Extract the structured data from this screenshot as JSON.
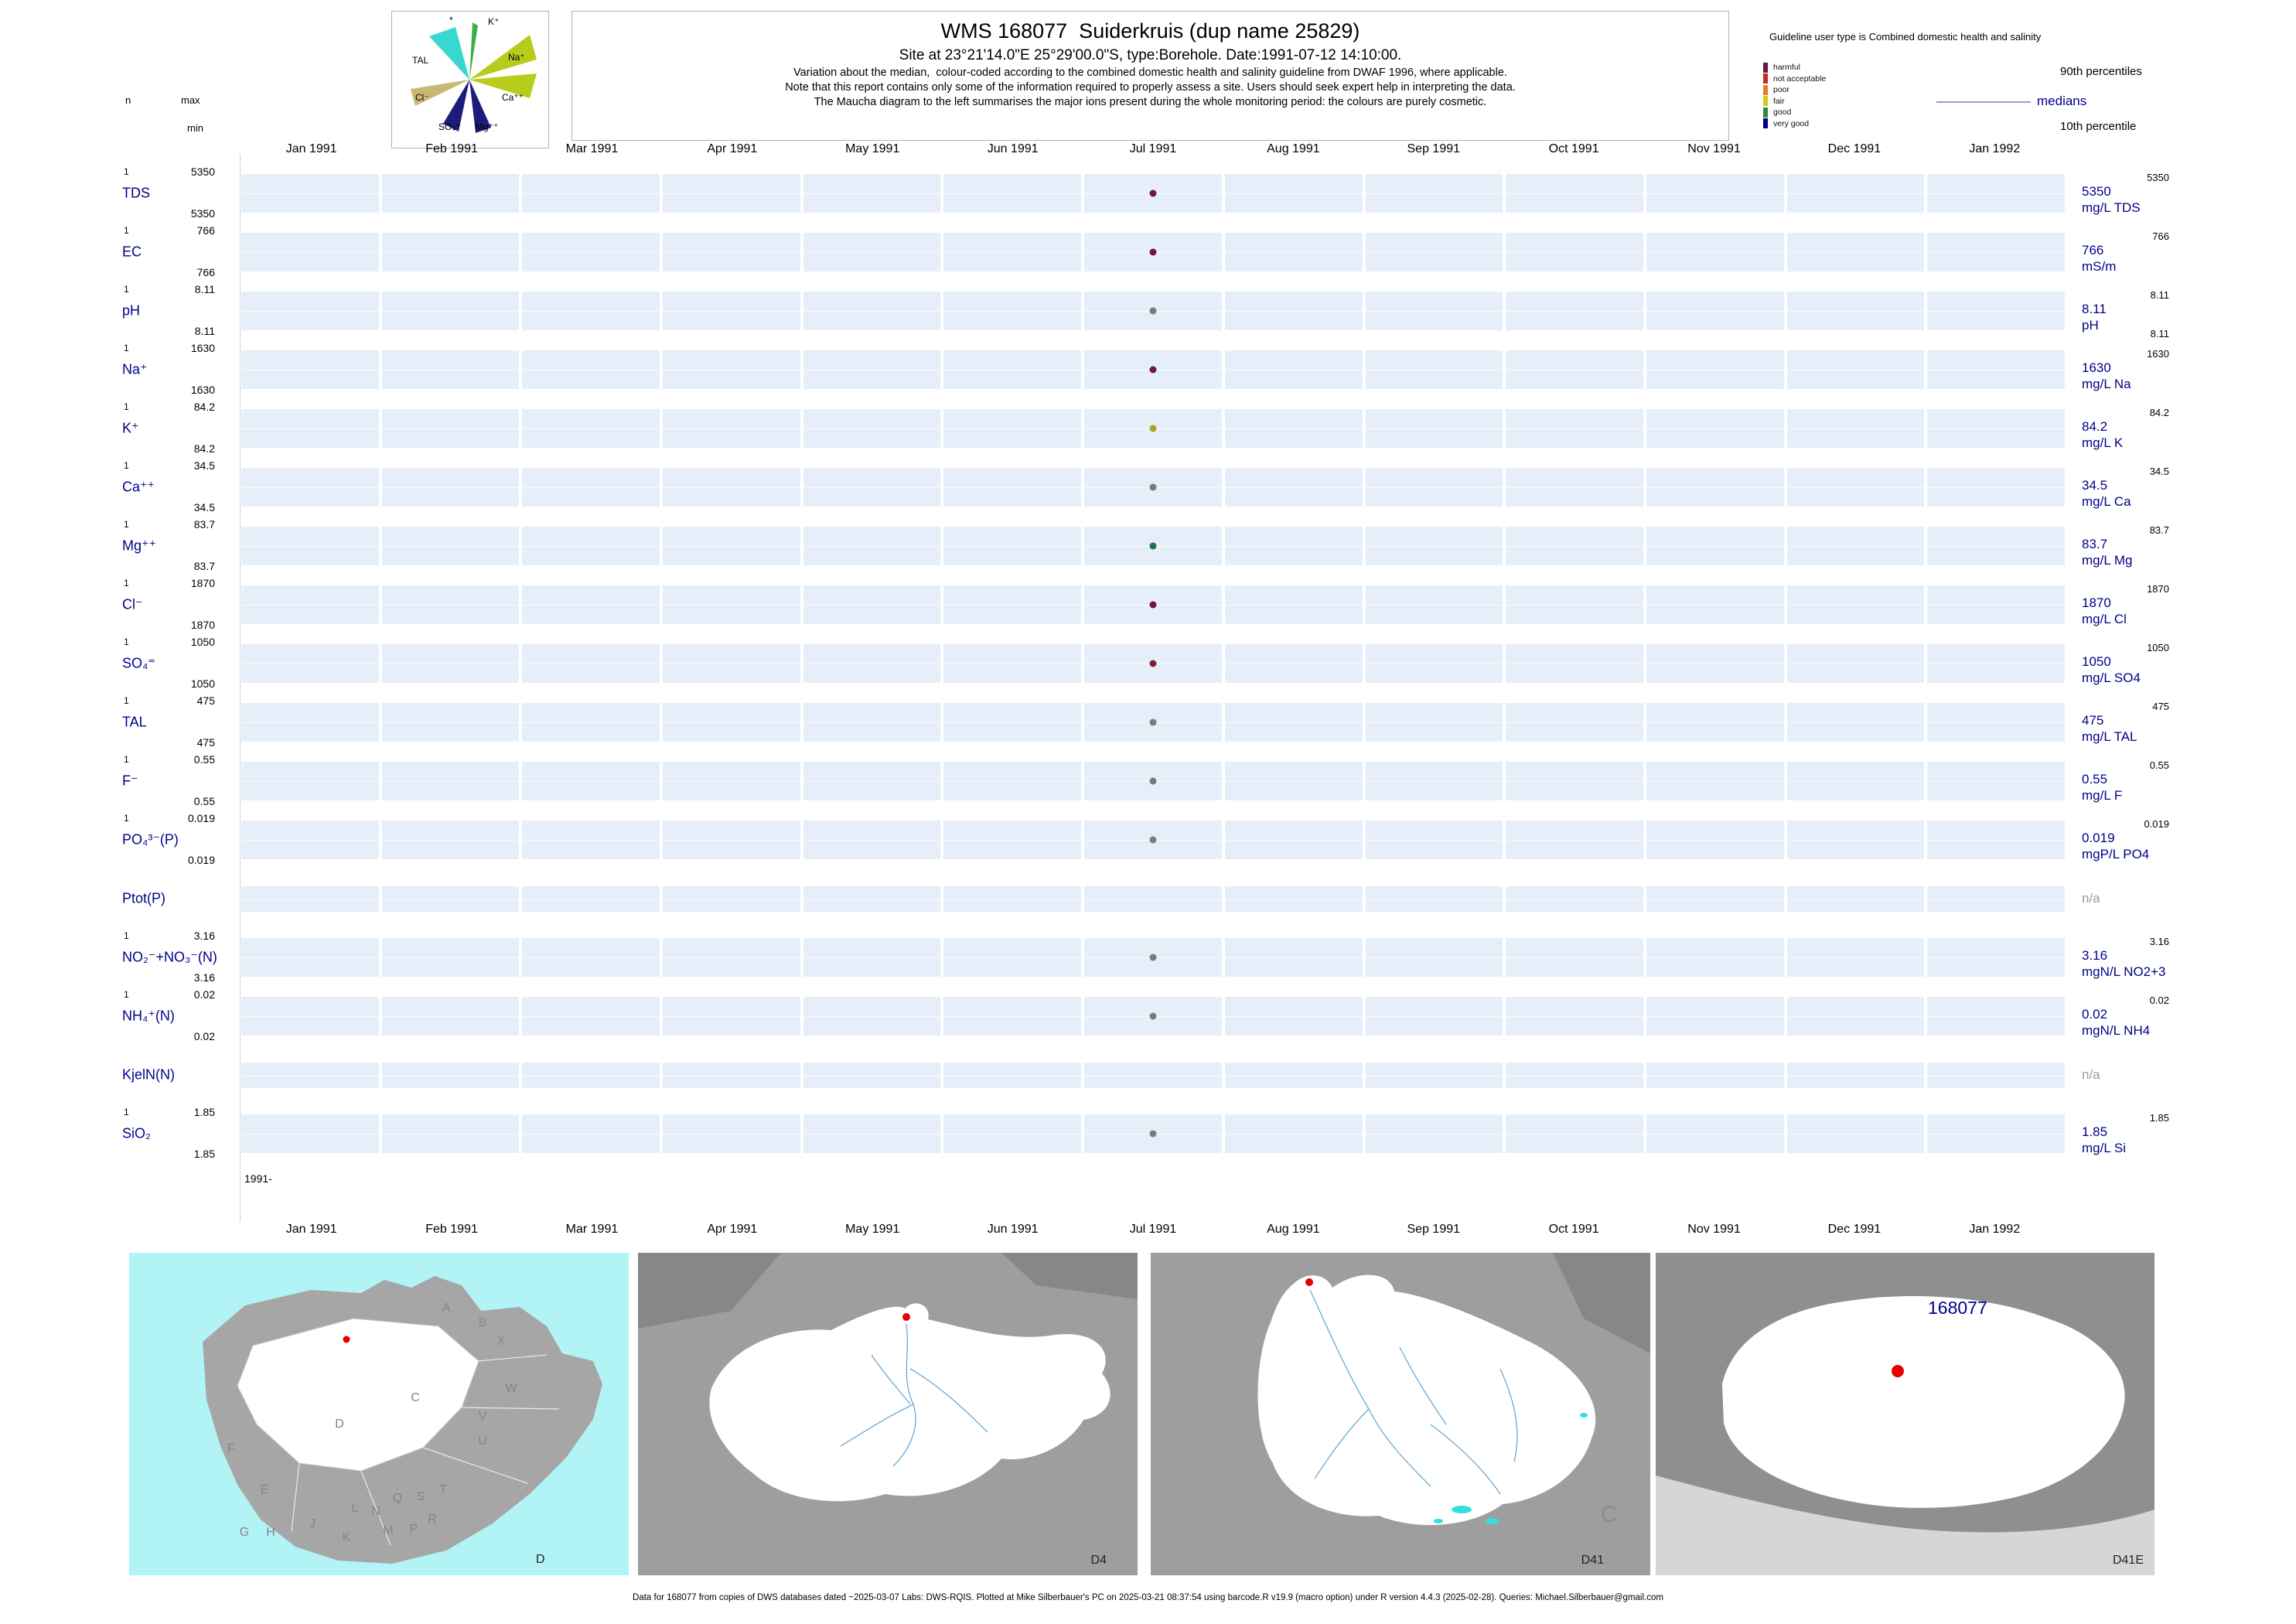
{
  "header": {
    "title": "WMS 168077  Suiderkruis (dup name 25829)",
    "subtitle": "Site at 23°21'14.0\"E 25°29'00.0\"S, type:Borehole. Date:1991-07-12 14:10:00.",
    "note1": "Variation about the median,  colour-coded according to the combined domestic health and salinity guideline from DWAF 1996, where applicable.",
    "note2": "Note that this report contains only some of the information required to properly assess a site. Users should seek expert help in interpreting the data.",
    "note3": "The Maucha diagram to the left summarises the major ions present during the whole monitoring period: the colours are purely cosmetic."
  },
  "stats_header": {
    "n": "n",
    "max": "max",
    "min": "min"
  },
  "maucha": {
    "star": "*",
    "labels": {
      "k": "K⁺",
      "na": "Na⁺",
      "ca": "Ca⁺⁺",
      "mg": "Mg⁺⁺",
      "so4": "SO₄⁼",
      "cl": "Cl⁻",
      "tal": "TAL"
    }
  },
  "guideline_legend": {
    "title": "Guideline user type is Combined domestic health and salinity",
    "levels": [
      {
        "label": "harmful",
        "color": "#6d1745"
      },
      {
        "label": "not acceptable",
        "color": "#c22d1f"
      },
      {
        "label": "poor",
        "color": "#e0821e"
      },
      {
        "label": "fair",
        "color": "#d4c720"
      },
      {
        "label": "good",
        "color": "#2e8b3e"
      },
      {
        "label": "very good",
        "color": "#00008b"
      }
    ],
    "p90_label": "90th percentiles",
    "median_label": "medians",
    "p10_label": "10th percentile",
    "median_color": "#00008b"
  },
  "months": [
    "Jan 1991",
    "Feb 1991",
    "Mar 1991",
    "Apr 1991",
    "May 1991",
    "Jun 1991",
    "Jul 1991",
    "Aug 1991",
    "Sep 1991",
    "Oct 1991",
    "Nov 1991",
    "Dec 1991",
    "Jan 1992"
  ],
  "year_start_label": "1991-",
  "chart_data": {
    "type": "scatter",
    "x_categories": [
      "Jan 1991",
      "Feb 1991",
      "Mar 1991",
      "Apr 1991",
      "May 1991",
      "Jun 1991",
      "Jul 1991",
      "Aug 1991",
      "Sep 1991",
      "Oct 1991",
      "Nov 1991",
      "Dec 1991",
      "Jan 1992"
    ],
    "sample_date": "1991-07-12 14:10:00",
    "sample_month": "Jul 1991",
    "sample_month_index": 6,
    "series": [
      {
        "key": "tds",
        "param": "TDS",
        "has_data": true,
        "n": "1",
        "max": "5350",
        "min": "5350",
        "p90": "5350",
        "median": "5350",
        "p10": "",
        "unit": "mg/L TDS",
        "value": 5350,
        "dot_color": "#6d1745"
      },
      {
        "key": "ec",
        "param": "EC",
        "has_data": true,
        "n": "1",
        "max": "766",
        "min": "766",
        "p90": "766",
        "median": "766",
        "p10": "",
        "unit": "mS/m",
        "value": 766,
        "dot_color": "#6d1745"
      },
      {
        "key": "ph",
        "param": "pH",
        "has_data": true,
        "n": "1",
        "max": "8.11",
        "min": "8.11",
        "p90": "8.11",
        "median": "8.11",
        "p10": "8.11",
        "unit": "pH",
        "value": 8.11,
        "dot_color": "#7a7a7a"
      },
      {
        "key": "na",
        "param": "Na⁺",
        "has_data": true,
        "n": "1",
        "max": "1630",
        "min": "1630",
        "p90": "1630",
        "median": "1630",
        "p10": "",
        "unit": "mg/L Na",
        "value": 1630,
        "dot_color": "#6d1745"
      },
      {
        "key": "k",
        "param": "K⁺",
        "has_data": true,
        "n": "1",
        "max": "84.2",
        "min": "84.2",
        "p90": "84.2",
        "median": "84.2",
        "p10": "",
        "unit": "mg/L K",
        "value": 84.2,
        "dot_color": "#a9a51c"
      },
      {
        "key": "ca",
        "param": "Ca⁺⁺",
        "has_data": true,
        "n": "1",
        "max": "34.5",
        "min": "34.5",
        "p90": "34.5",
        "median": "34.5",
        "p10": "",
        "unit": "mg/L Ca",
        "value": 34.5,
        "dot_color": "#7a7a7a"
      },
      {
        "key": "mg",
        "param": "Mg⁺⁺",
        "has_data": true,
        "n": "1",
        "max": "83.7",
        "min": "83.7",
        "p90": "83.7",
        "median": "83.7",
        "p10": "",
        "unit": "mg/L Mg",
        "value": 83.7,
        "dot_color": "#20714a"
      },
      {
        "key": "cl",
        "param": "Cl⁻",
        "has_data": true,
        "n": "1",
        "max": "1870",
        "min": "1870",
        "p90": "1870",
        "median": "1870",
        "p10": "",
        "unit": "mg/L Cl",
        "value": 1870,
        "dot_color": "#6d1745"
      },
      {
        "key": "so4",
        "param": "SO₄⁼",
        "has_data": true,
        "n": "1",
        "max": "1050",
        "min": "1050",
        "p90": "1050",
        "median": "1050",
        "p10": "",
        "unit": "mg/L SO4",
        "value": 1050,
        "dot_color": "#7d1f35"
      },
      {
        "key": "tal",
        "param": "TAL",
        "has_data": true,
        "n": "1",
        "max": "475",
        "min": "475",
        "p90": "475",
        "median": "475",
        "p10": "",
        "unit": "mg/L TAL",
        "value": 475,
        "dot_color": "#7a7a7a"
      },
      {
        "key": "f",
        "param": "F⁻",
        "has_data": true,
        "n": "1",
        "max": "0.55",
        "min": "0.55",
        "p90": "0.55",
        "median": "0.55",
        "p10": "",
        "unit": "mg/L F",
        "value": 0.55,
        "dot_color": "#7a7a7a"
      },
      {
        "key": "po4",
        "param": "PO₄³⁻(P)",
        "has_data": true,
        "n": "1",
        "max": "0.019",
        "min": "0.019",
        "p90": "0.019",
        "median": "0.019",
        "p10": "",
        "unit": "mgP/L PO4",
        "value": 0.019,
        "dot_color": "#7a7a7a"
      },
      {
        "key": "ptot",
        "param": "Ptot(P)",
        "has_data": false,
        "na_label": "n/a"
      },
      {
        "key": "no2no3",
        "param": "NO₂⁻+NO₃⁻(N)",
        "has_data": true,
        "n": "1",
        "max": "3.16",
        "min": "3.16",
        "p90": "3.16",
        "median": "3.16",
        "p10": "",
        "unit": "mgN/L NO2+3",
        "value": 3.16,
        "dot_color": "#7a7a7a"
      },
      {
        "key": "nh4",
        "param": "NH₄⁺(N)",
        "has_data": true,
        "n": "1",
        "max": "0.02",
        "min": "0.02",
        "p90": "0.02",
        "median": "0.02",
        "p10": "",
        "unit": "mgN/L NH4",
        "value": 0.02,
        "dot_color": "#7a7a7a"
      },
      {
        "key": "kjeln",
        "param": "KjelN(N)",
        "has_data": false,
        "na_label": "n/a"
      },
      {
        "key": "sio2",
        "param": "SiO₂",
        "has_data": true,
        "n": "1",
        "max": "1.85",
        "min": "1.85",
        "p90": "1.85",
        "median": "1.85",
        "p10": "",
        "unit": "mg/L Si",
        "value": 1.85,
        "dot_color": "#7a7a7a"
      }
    ]
  },
  "maps": [
    {
      "corner_label": "D",
      "region_letters": [
        "A",
        "B",
        "X",
        "W",
        "C",
        "V",
        "D",
        "U",
        "F",
        "E",
        "Q",
        "S",
        "T",
        "L",
        "N",
        "R",
        "G",
        "H",
        "J",
        "M",
        "K",
        "P"
      ]
    },
    {
      "corner_label": "D4"
    },
    {
      "corner_label": "D41",
      "watermark": "C"
    },
    {
      "corner_label": "D41E",
      "site_label": "168077"
    }
  ],
  "footer": "Data for 168077 from copies of DWS databases dated ~2025-03-07 Labs: DWS-RQIS. Plotted at Mike Silberbauer's PC on 2025-03-21 08:37:54 using barcode.R v19.9 (macro option) under R version 4.4.3 (2025-02-28). Queries: Michael.Silberbauer@gmail.com"
}
